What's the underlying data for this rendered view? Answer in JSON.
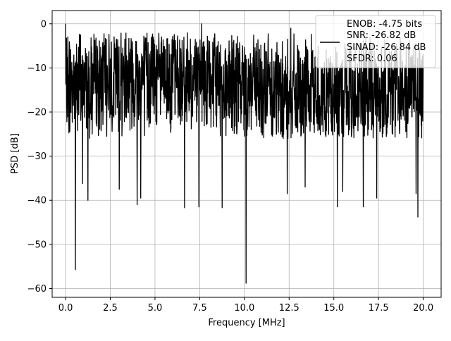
{
  "chart_data": {
    "type": "line",
    "xlabel": "Frequency [MHz]",
    "ylabel": "PSD [dB]",
    "xlim": [
      -0.75,
      21.0
    ],
    "ylim": [
      -62,
      3
    ],
    "x_ticks": [
      0.0,
      2.5,
      5.0,
      7.5,
      10.0,
      12.5,
      15.0,
      17.5,
      20.0
    ],
    "x_tick_labels": [
      "0.0",
      "2.5",
      "5.0",
      "7.5",
      "10.0",
      "12.5",
      "15.0",
      "17.5",
      "20.0"
    ],
    "y_ticks": [
      0,
      -10,
      -20,
      -30,
      -40,
      -50,
      -60
    ],
    "y_tick_labels": [
      "0",
      "−10",
      "−20",
      "−30",
      "−40",
      "−50",
      "−60"
    ],
    "grid": true,
    "legend_position": "top-right",
    "series": [
      {
        "color": "#000000",
        "x_range": [
          0.0,
          20.0
        ],
        "legend_lines": [
          "ENOB: -4.75 bits",
          "SNR: -26.82 dB",
          "SINAD: -26.84 dB",
          "SFDR: 0.06"
        ],
        "y_band": [
          -26,
          -2
        ],
        "peaks": [
          {
            "x": 0.0,
            "y": 0.0
          },
          {
            "x": 7.6,
            "y": 0.0
          },
          {
            "x": 12.6,
            "y": -1.0
          },
          {
            "x": 15.2,
            "y": -0.5
          }
        ],
        "dips": [
          {
            "x": 0.55,
            "y": -55.7
          },
          {
            "x": 0.95,
            "y": -36.2
          },
          {
            "x": 1.25,
            "y": -40.0
          },
          {
            "x": 3.0,
            "y": -37.5
          },
          {
            "x": 4.0,
            "y": -41.0
          },
          {
            "x": 4.2,
            "y": -39.5
          },
          {
            "x": 6.65,
            "y": -41.7
          },
          {
            "x": 7.45,
            "y": -41.5
          },
          {
            "x": 8.75,
            "y": -41.7
          },
          {
            "x": 10.1,
            "y": -58.8
          },
          {
            "x": 12.4,
            "y": -38.5
          },
          {
            "x": 13.4,
            "y": -37.0
          },
          {
            "x": 15.2,
            "y": -41.5
          },
          {
            "x": 15.5,
            "y": -38.0
          },
          {
            "x": 16.65,
            "y": -41.5
          },
          {
            "x": 17.4,
            "y": -39.5
          },
          {
            "x": 19.7,
            "y": -43.8
          },
          {
            "x": 19.6,
            "y": -38.5
          }
        ]
      }
    ]
  }
}
